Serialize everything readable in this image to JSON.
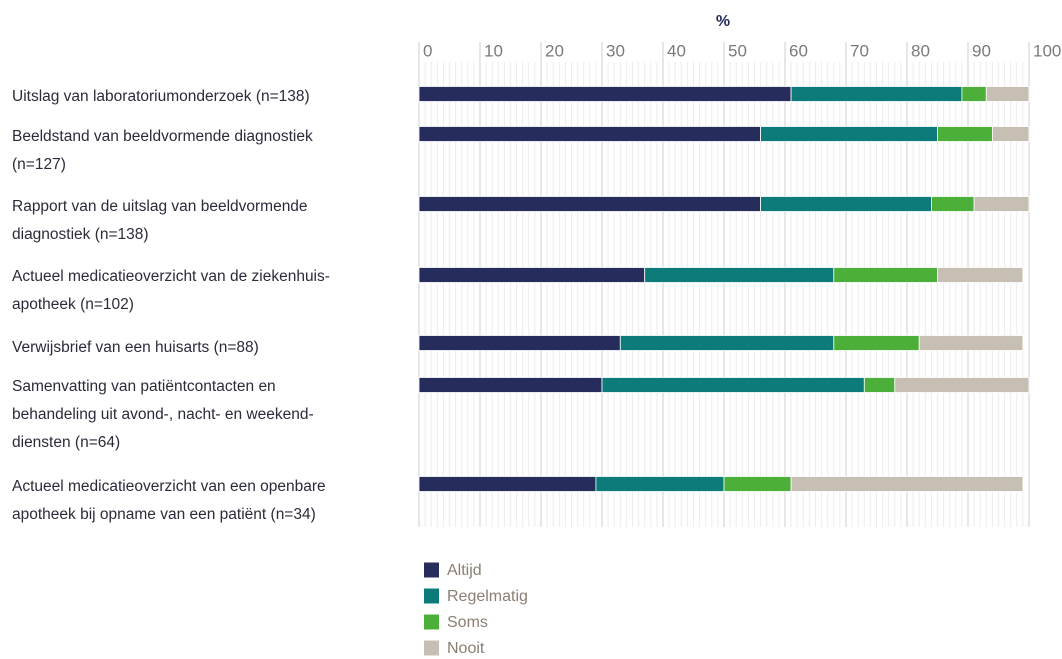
{
  "chart_data": {
    "type": "stacked_bar_horizontal",
    "x_label": "%",
    "categories": [
      "Uitslag van laboratoriumonderzoek (n=138)",
      "Beeldstand van beeldvormende diagnostiek\n(n=127)",
      "Rapport van de uitslag van beeldvormende\ndiagnostiek (n=138)",
      "Actueel medicatieoverzicht van de ziekenhuis-\napotheek (n=102)",
      "Verwijsbrief van een huisarts (n=88)",
      "Samenvatting van patiëntcontacten en\nbehandeling uit avond-, nacht- en weekend-\ndiensten (n=64)",
      "Actueel medicatieoverzicht van een openbare\napotheek bij opname van een patiënt (n=34)"
    ],
    "series": [
      {
        "name": "Altijd",
        "color": "#262d5c",
        "values": [
          61,
          56,
          56,
          37,
          33,
          30,
          29
        ]
      },
      {
        "name": "Regelmatig",
        "color": "#0e7b7b",
        "values": [
          28,
          29,
          28,
          31,
          35,
          43,
          21
        ]
      },
      {
        "name": "Soms",
        "color": "#4caf3a",
        "values": [
          4,
          9,
          7,
          17,
          14,
          5,
          11
        ]
      },
      {
        "name": "Nooit",
        "color": "#c8bfb4",
        "values": [
          7,
          6,
          9,
          14,
          17,
          22,
          38
        ]
      }
    ],
    "xlim": [
      0,
      100
    ],
    "xticks": [
      0,
      10,
      20,
      30,
      40,
      50,
      60,
      70,
      80,
      90,
      100
    ],
    "grid": true,
    "legend": "bottom"
  }
}
